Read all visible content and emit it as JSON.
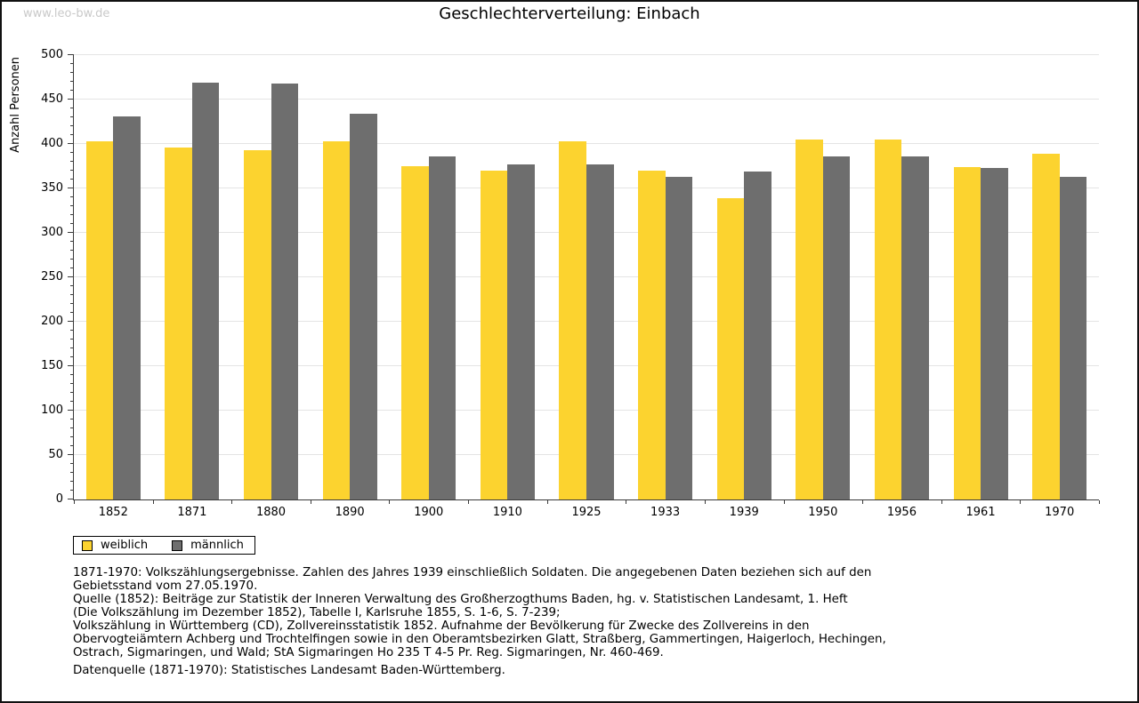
{
  "page": {
    "watermark": "www.leo-bw.de"
  },
  "chart_data": {
    "type": "bar",
    "title": "Geschlechterverteilung: Einbach",
    "xlabel": "",
    "ylabel": "Anzahl Personen",
    "ylim": [
      0,
      500
    ],
    "y_major_step": 50,
    "y_minor_step": 10,
    "grid": true,
    "legend_position": "bottom-left",
    "categories": [
      "1852",
      "1871",
      "1880",
      "1890",
      "1900",
      "1910",
      "1925",
      "1933",
      "1939",
      "1950",
      "1956",
      "1961",
      "1970"
    ],
    "series": [
      {
        "name": "weiblich",
        "color": "#FCD32F",
        "values": [
          403,
          396,
          393,
          403,
          375,
          370,
          403,
          370,
          339,
          405,
          405,
          374,
          389
        ]
      },
      {
        "name": "männlich",
        "color": "#6E6E6E",
        "values": [
          431,
          469,
          468,
          434,
          386,
          377,
          377,
          363,
          369,
          386,
          386,
          373,
          363
        ]
      }
    ]
  },
  "footnotes": {
    "lines": [
      "1871-1970: Volkszählungsergebnisse. Zahlen des Jahres 1939 einschließlich Soldaten. Die angegebenen Daten beziehen sich auf den",
      "Gebietsstand vom 27.05.1970.",
      "Quelle (1852): Beiträge zur Statistik der Inneren Verwaltung des Großherzogthums Baden, hg. v. Statistischen Landesamt, 1. Heft",
      "(Die Volkszählung im Dezember 1852), Tabelle I, Karlsruhe 1855, S. 1-6, S. 7-239;",
      "Volkszählung in Württemberg (CD), Zollvereinsstatistik 1852. Aufnahme der Bevölkerung für Zwecke des Zollvereins in den",
      "Obervogteiämtern Achberg und Trochtelfingen sowie in den Oberamtsbezirken Glatt, Straßberg, Gammertingen, Haigerloch, Hechingen,",
      "Ostrach, Sigmaringen, und Wald; StA Sigmaringen Ho 235 T 4-5 Pr. Reg. Sigmaringen, Nr. 460-469."
    ],
    "datasource": "Datenquelle (1871-1970): Statistisches Landesamt Baden-Württemberg."
  },
  "colors": {
    "grid": "#e4e4e4",
    "axis": "#3a3a3a",
    "watermark": "#c9c9c9"
  }
}
